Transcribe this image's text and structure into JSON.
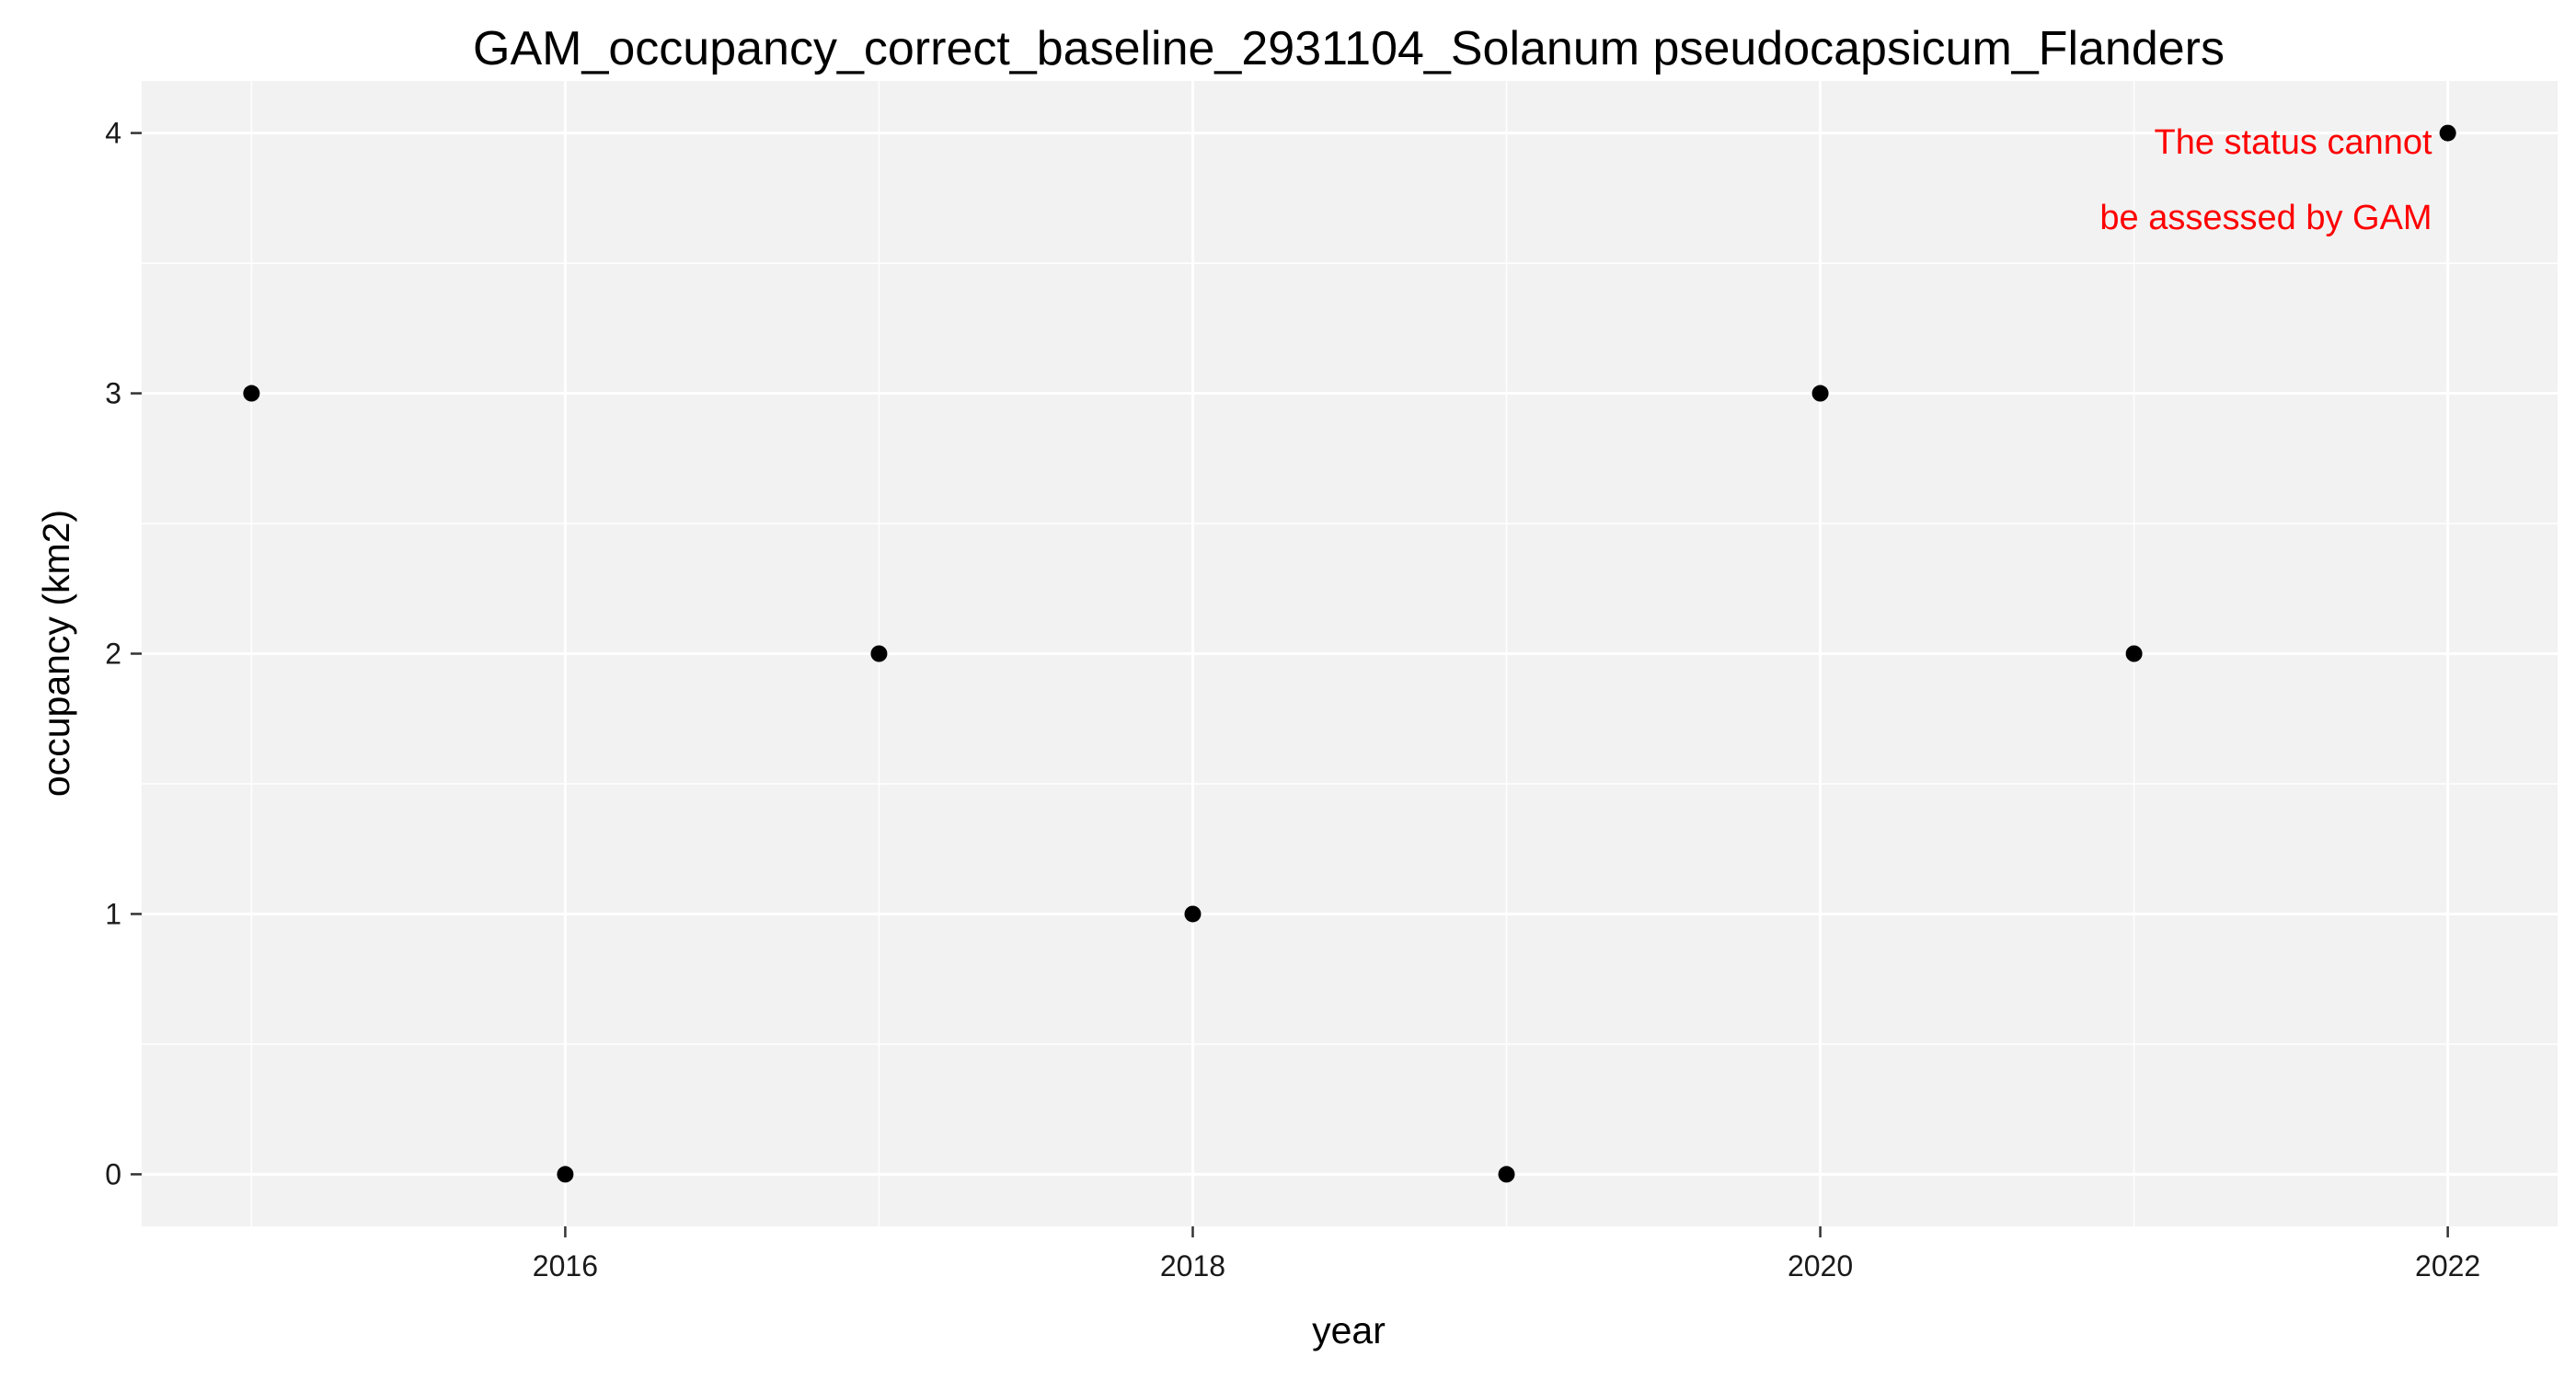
{
  "chart_data": {
    "type": "scatter",
    "title": "GAM_occupancy_correct_baseline_2931104_Solanum pseudocapsicum_Flanders",
    "xlabel": "year",
    "ylabel": "occupancy (km2)",
    "x": [
      2015,
      2016,
      2017,
      2018,
      2019,
      2020,
      2021,
      2022
    ],
    "y": [
      3,
      0,
      2,
      1,
      0,
      3,
      2,
      4
    ],
    "xlim": [
      2014.65,
      2022.35
    ],
    "ylim": [
      -0.2,
      4.2
    ],
    "x_ticks": [
      2016,
      2018,
      2020,
      2022
    ],
    "y_ticks": [
      0,
      1,
      2,
      3,
      4
    ],
    "x_tick_labels": [
      "2016",
      "2018",
      "2020",
      "2022"
    ],
    "y_tick_labels": [
      "0",
      "1",
      "2",
      "3",
      "4"
    ],
    "grid": true,
    "legend": "none",
    "annotation": {
      "lines": [
        "The status cannot",
        "be assessed by GAM"
      ],
      "color": "#ff0000"
    },
    "colors": {
      "panel_background": "#f2f2f2",
      "grid_line": "#ffffff",
      "point": "#000000"
    }
  }
}
